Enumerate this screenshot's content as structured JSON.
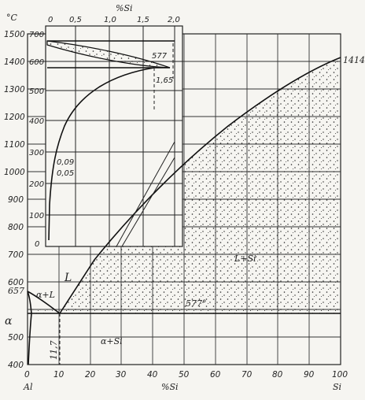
{
  "main": {
    "y_unit": "°C",
    "y_ticks": [
      "1500",
      "1400",
      "1300",
      "1200",
      "1100",
      "1000",
      "900",
      "800",
      "700",
      "600",
      "500",
      "400"
    ],
    "x_ticks": [
      "0",
      "10",
      "20",
      "30",
      "40",
      "50",
      "60",
      "70",
      "80",
      "90",
      "100"
    ],
    "x_left_label": "Al",
    "x_right_label": "Si",
    "x_axis_label": "%Si",
    "eutectic_x_label": "11,7",
    "al_melting_label": "657",
    "si_melting_label": "1414°",
    "eutectic_temp_label": "577°",
    "phase_L": "L",
    "phase_alpha": "α",
    "phase_alpha_L": "α+L",
    "phase_L_Si": "L+Si",
    "phase_alpha_Si": "α+Si"
  },
  "inset": {
    "x_axis_label": "%Si",
    "x_ticks": [
      "0",
      "0,5",
      "1,0",
      "1,5",
      "2,0"
    ],
    "y_ticks": [
      "700",
      "600",
      "500",
      "400",
      "300",
      "200",
      "100",
      "0"
    ],
    "eutectic_temp_label": "577",
    "solubility_label": "1,65",
    "point_label_1": "0,09",
    "point_label_2": "0,05"
  }
}
